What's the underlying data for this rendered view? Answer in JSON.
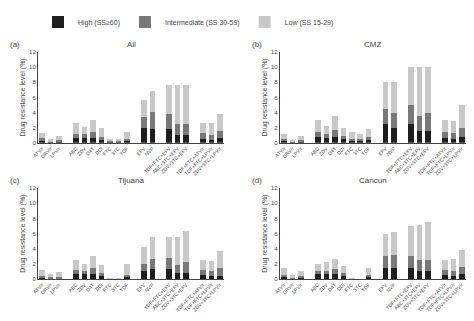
{
  "chart_data": [
    {
      "type": "bar",
      "stacked": true,
      "title": "All",
      "annotations": [
        "(a)"
      ],
      "ylabel": "Drug resistance level (%)",
      "categories": [
        "ATV/r",
        "DRV/r",
        "LPV/r",
        null,
        "ABC",
        "ZDV",
        "D4T",
        "DDI",
        "FTC",
        "3TC",
        "TDF",
        null,
        "EFV",
        "NVP",
        null,
        "TDF+FTC+EFV",
        "ABC+3TC+EFV",
        "ZDV+3TC+EFV",
        null,
        "TDF+FTC+ATV/r",
        "TDF+FTC+LPV/r",
        "ZDV+3TC+LPV/r"
      ],
      "series": [
        {
          "name": "High (SS≥60)",
          "color": "#1e1e1e",
          "values": [
            0.3,
            0.1,
            0.2,
            0,
            0.7,
            0.6,
            0.7,
            0.4,
            0.1,
            0.1,
            0.2,
            0,
            2.0,
            1.8,
            0,
            1.8,
            1.0,
            1.0,
            0,
            0.5,
            0.4,
            0.6
          ]
        },
        {
          "name": "Intermediate (SS 30-59)",
          "color": "#787878",
          "values": [
            0.3,
            0.1,
            0.2,
            0,
            0.5,
            0.5,
            0.7,
            0.4,
            0.1,
            0.1,
            0.3,
            0,
            1.4,
            2.3,
            0,
            2.0,
            1.5,
            1.5,
            0,
            0.8,
            0.6,
            1.0
          ]
        },
        {
          "name": "Low (SS 15-29)",
          "color": "#c8c8c8",
          "values": [
            0.65,
            0.25,
            0.55,
            0,
            1.4,
            1.0,
            1.6,
            1.1,
            0.35,
            0.35,
            0.9,
            0,
            2.2,
            2.8,
            0,
            3.8,
            5.2,
            5.2,
            0,
            1.3,
            1.6,
            2.2
          ]
        }
      ],
      "ylim": [
        0,
        12
      ],
      "yticks": [
        0,
        2,
        4,
        6,
        8,
        10,
        12
      ],
      "grid": false,
      "legend": "top"
    },
    {
      "type": "bar",
      "stacked": true,
      "title": "CMZ",
      "annotations": [
        "(b)"
      ],
      "ylabel": "Drug resistance level (%)",
      "categories": [
        "ATV/r",
        "DRV/r",
        "LPV/r",
        null,
        "ABC",
        "ZDV",
        "D4T",
        "DDI",
        "FTC",
        "3TC",
        "TDF",
        null,
        "EFV",
        "NVP",
        null,
        "TDF+FTC+EFV",
        "ABC+3TC+EFV",
        "ZDV+3TC+EFV",
        null,
        "TDF+FTC+ATV/r",
        "TDF+FTC+LPV/r",
        "ZDV+3TC+LPV/r"
      ],
      "series": [
        {
          "name": "High (SS≥60)",
          "color": "#1e1e1e",
          "values": [
            0.3,
            0.05,
            0.15,
            0,
            0.8,
            0.7,
            0.8,
            0.5,
            0.25,
            0.25,
            0.4,
            0,
            2.5,
            2.0,
            0,
            2.5,
            1.5,
            1.5,
            0,
            0.6,
            0.5,
            0.8
          ]
        },
        {
          "name": "Intermediate (SS 30-59)",
          "color": "#787878",
          "values": [
            0.25,
            0.1,
            0.2,
            0,
            0.6,
            0.5,
            0.9,
            0.4,
            0.3,
            0.3,
            0.4,
            0,
            2.0,
            2.0,
            0,
            2.5,
            2.0,
            2.5,
            0,
            0.8,
            0.8,
            1.2
          ]
        },
        {
          "name": "Low (SS 15-29)",
          "color": "#c8c8c8",
          "values": [
            0.6,
            0.15,
            0.5,
            0,
            1.6,
            1.0,
            1.8,
            1.0,
            0.9,
            0.6,
            1.0,
            0,
            3.5,
            4.0,
            0,
            5.0,
            6.5,
            6.0,
            0,
            1.6,
            1.6,
            3.0
          ]
        }
      ],
      "ylim": [
        0,
        12
      ],
      "yticks": [
        0,
        2,
        4,
        6,
        8,
        10,
        12
      ],
      "grid": false
    },
    {
      "type": "bar",
      "stacked": true,
      "title": "Tijuana",
      "annotations": [
        "(c)"
      ],
      "ylabel": "Drug resistance level (%)",
      "categories": [
        "ATV/r",
        "DRV/r",
        "LPV/r",
        null,
        "ABC",
        "ZDV",
        "D4T",
        "DDI",
        "FTC",
        "3TC",
        "TDF",
        null,
        "EFV",
        "NVP",
        null,
        "TDF+FTC+EFV",
        "ABC+3TC+EFV",
        "ZDV+3TC+EFV",
        null,
        "TDF+FTC+ATV/r",
        "TDF+FTC+LPV/r",
        "ZDV+3TC+LPV/r"
      ],
      "series": [
        {
          "name": "High (SS≥60)",
          "color": "#1e1e1e",
          "values": [
            0.15,
            0.05,
            0.1,
            0,
            0.7,
            0.6,
            0.7,
            0.4,
            0.02,
            0.02,
            0.2,
            0,
            1.0,
            1.3,
            0,
            1.3,
            0.8,
            0.8,
            0,
            0.5,
            0.4,
            0.4
          ]
        },
        {
          "name": "Intermediate (SS 30-59)",
          "color": "#787878",
          "values": [
            0.2,
            0.15,
            0.2,
            0,
            0.5,
            0.5,
            0.7,
            0.4,
            0.03,
            0.03,
            0.3,
            0,
            1.0,
            1.4,
            0,
            1.5,
            1.0,
            1.4,
            0,
            0.7,
            0.7,
            1.0
          ]
        },
        {
          "name": "Low (SS 15-29)",
          "color": "#c8c8c8",
          "values": [
            0.9,
            0.5,
            0.6,
            0,
            1.3,
            0.9,
            1.6,
            1.0,
            0.05,
            0.05,
            1.5,
            0,
            2.2,
            2.8,
            0,
            2.8,
            3.7,
            4.2,
            0,
            1.3,
            1.3,
            2.3
          ]
        }
      ],
      "ylim": [
        0,
        12
      ],
      "yticks": [
        0,
        2,
        4,
        6,
        8,
        10,
        12
      ],
      "grid": false
    },
    {
      "type": "bar",
      "stacked": true,
      "title": "Cancun",
      "annotations": [
        "(d)"
      ],
      "ylabel": "Drug resistance level (%)",
      "categories": [
        "ATV/r",
        "DRV/r",
        "LPV/r",
        null,
        "ABC",
        "ZDV",
        "D4T",
        "DDI",
        "FTC",
        "3TC",
        "TDF",
        null,
        "EFV",
        "NVP",
        null,
        "TDF+FTC+EFV",
        "ABC+3TC+EFV",
        "ZDV+3TC+EFV",
        null,
        "TDF+FTC+ATV/r",
        "TDF+FTC+LPV/r",
        "ZDV+3TC+LPV/r"
      ],
      "series": [
        {
          "name": "High (SS≥60)",
          "color": "#1e1e1e",
          "values": [
            0.3,
            0.05,
            0.15,
            0,
            0.6,
            0.6,
            0.6,
            0.4,
            0.02,
            0.0,
            0.2,
            0,
            1.5,
            1.4,
            0,
            1.5,
            1.0,
            1.0,
            0,
            0.5,
            0.4,
            0.7
          ]
        },
        {
          "name": "Intermediate (SS 30-59)",
          "color": "#787878",
          "values": [
            0.25,
            0.1,
            0.2,
            0,
            0.5,
            0.5,
            0.7,
            0.4,
            0.03,
            0.0,
            0.3,
            0,
            1.5,
            1.8,
            0,
            1.5,
            1.5,
            1.5,
            0,
            0.7,
            0.7,
            0.9
          ]
        },
        {
          "name": "Low (SS 15-29)",
          "color": "#c8c8c8",
          "values": [
            0.9,
            0.35,
            0.65,
            0,
            0.9,
            1.1,
            1.4,
            0.9,
            0.05,
            0.0,
            0.9,
            0,
            3.0,
            3.0,
            0,
            4.0,
            4.6,
            5.0,
            0,
            1.3,
            1.5,
            2.2
          ]
        }
      ],
      "ylim": [
        0,
        12
      ],
      "yticks": [
        0,
        2,
        4,
        6,
        8,
        10,
        12
      ],
      "grid": false
    }
  ]
}
